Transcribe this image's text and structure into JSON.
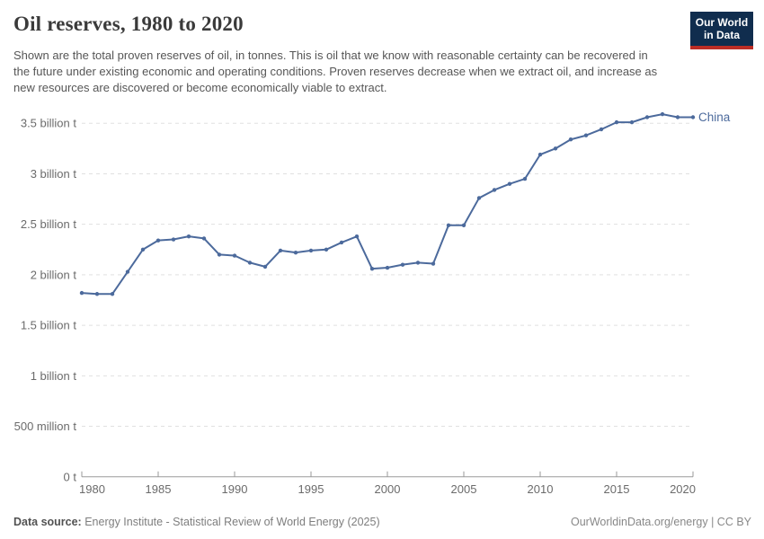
{
  "header": {
    "title": "Oil reserves, 1980 to 2020",
    "subtitle": "Shown are the total proven reserves of oil, in tonnes. This is oil that we know with reasonable certainty can be recovered in the future under existing economic and operating conditions. Proven reserves decrease when we extract oil, and increase as new resources are discovered or become economically viable to extract.",
    "logo": {
      "line1": "Our World",
      "line2": "in Data",
      "bg_color": "#102d4e",
      "accent_color": "#bc2d25"
    }
  },
  "chart_data": {
    "type": "line",
    "title": "Oil reserves, 1980 to 2020",
    "unit": "tonnes",
    "x": [
      1980,
      1981,
      1982,
      1983,
      1984,
      1985,
      1986,
      1987,
      1988,
      1989,
      1990,
      1991,
      1992,
      1993,
      1994,
      1995,
      1996,
      1997,
      1998,
      1999,
      2000,
      2001,
      2002,
      2003,
      2004,
      2005,
      2006,
      2007,
      2008,
      2009,
      2010,
      2011,
      2012,
      2013,
      2014,
      2015,
      2016,
      2017,
      2018,
      2019,
      2020
    ],
    "series": [
      {
        "name": "China",
        "color": "#4C6A9C",
        "unit": "billion tonnes",
        "values": [
          1.82,
          1.81,
          1.81,
          2.03,
          2.25,
          2.34,
          2.35,
          2.38,
          2.36,
          2.2,
          2.19,
          2.12,
          2.08,
          2.24,
          2.22,
          2.24,
          2.25,
          2.32,
          2.38,
          2.06,
          2.07,
          2.1,
          2.12,
          2.11,
          2.49,
          2.49,
          2.76,
          2.84,
          2.9,
          2.95,
          3.19,
          3.25,
          3.34,
          3.38,
          3.44,
          3.51,
          3.51,
          3.56,
          3.59,
          3.56,
          3.56
        ]
      }
    ],
    "xlabel": "",
    "ylabel": "",
    "xlim": [
      1980,
      2020
    ],
    "ylim_billion_t": [
      0,
      3.5
    ],
    "grid": "horizontal dashed",
    "legend_position": "entity label at right end of line",
    "x_ticks": [
      1980,
      1985,
      1990,
      1995,
      2000,
      2005,
      2010,
      2015,
      2020
    ],
    "y_ticks": [
      {
        "value": 0,
        "label": "0 t"
      },
      {
        "value": 0.5,
        "label": "500 million t"
      },
      {
        "value": 1,
        "label": "1 billion t"
      },
      {
        "value": 1.5,
        "label": "1.5 billion t"
      },
      {
        "value": 2,
        "label": "2 billion t"
      },
      {
        "value": 2.5,
        "label": "2.5 billion t"
      },
      {
        "value": 3,
        "label": "3 billion t"
      },
      {
        "value": 3.5,
        "label": "3.5 billion t"
      }
    ],
    "colors": {
      "line": "#4C6A9C",
      "grid": "#e0e0e0",
      "axis": "#9a9a9a",
      "tick_text": "#6b6b6b"
    }
  },
  "footer": {
    "source_label": "Data source:",
    "source_value": "Energy Institute - Statistical Review of World Energy (2025)",
    "right": "OurWorldinData.org/energy | CC BY"
  }
}
